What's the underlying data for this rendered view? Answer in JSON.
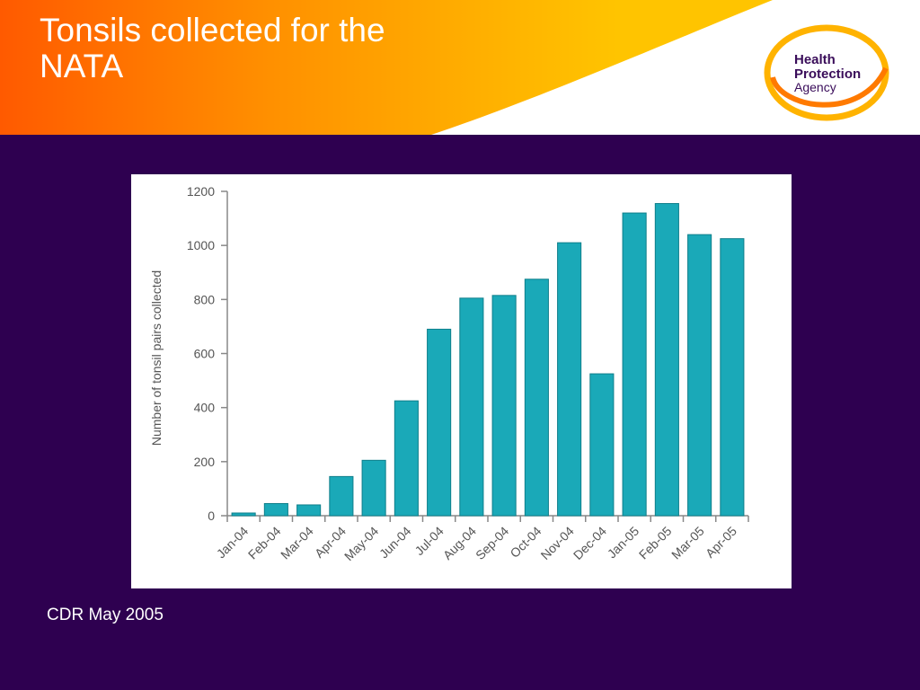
{
  "slide": {
    "title": "Tonsils collected for the NATA",
    "footer": "CDR May 2005",
    "logo": {
      "line1": "Health",
      "line2": "Protection",
      "line3": "Agency"
    }
  },
  "colors": {
    "background": "#2e0050",
    "banner_start": "#ff5a00",
    "banner_end": "#ffc400",
    "bar": "#1aa9b8",
    "logo_text": "#3a0d5a"
  },
  "chart_data": {
    "type": "bar",
    "title": "",
    "xlabel": "",
    "ylabel": "Number of tonsil pairs collected",
    "ylim": [
      0,
      1200
    ],
    "yticks": [
      0,
      200,
      400,
      600,
      800,
      1000,
      1200
    ],
    "grid": false,
    "categories": [
      "Jan-04",
      "Feb-04",
      "Mar-04",
      "Apr-04",
      "May-04",
      "Jun-04",
      "Jul-04",
      "Aug-04",
      "Sep-04",
      "Oct-04",
      "Nov-04",
      "Dec-04",
      "Jan-05",
      "Feb-05",
      "Mar-05",
      "Apr-05"
    ],
    "values": [
      10,
      45,
      40,
      145,
      205,
      425,
      690,
      805,
      815,
      875,
      1010,
      525,
      1120,
      1155,
      1040,
      1025
    ]
  }
}
